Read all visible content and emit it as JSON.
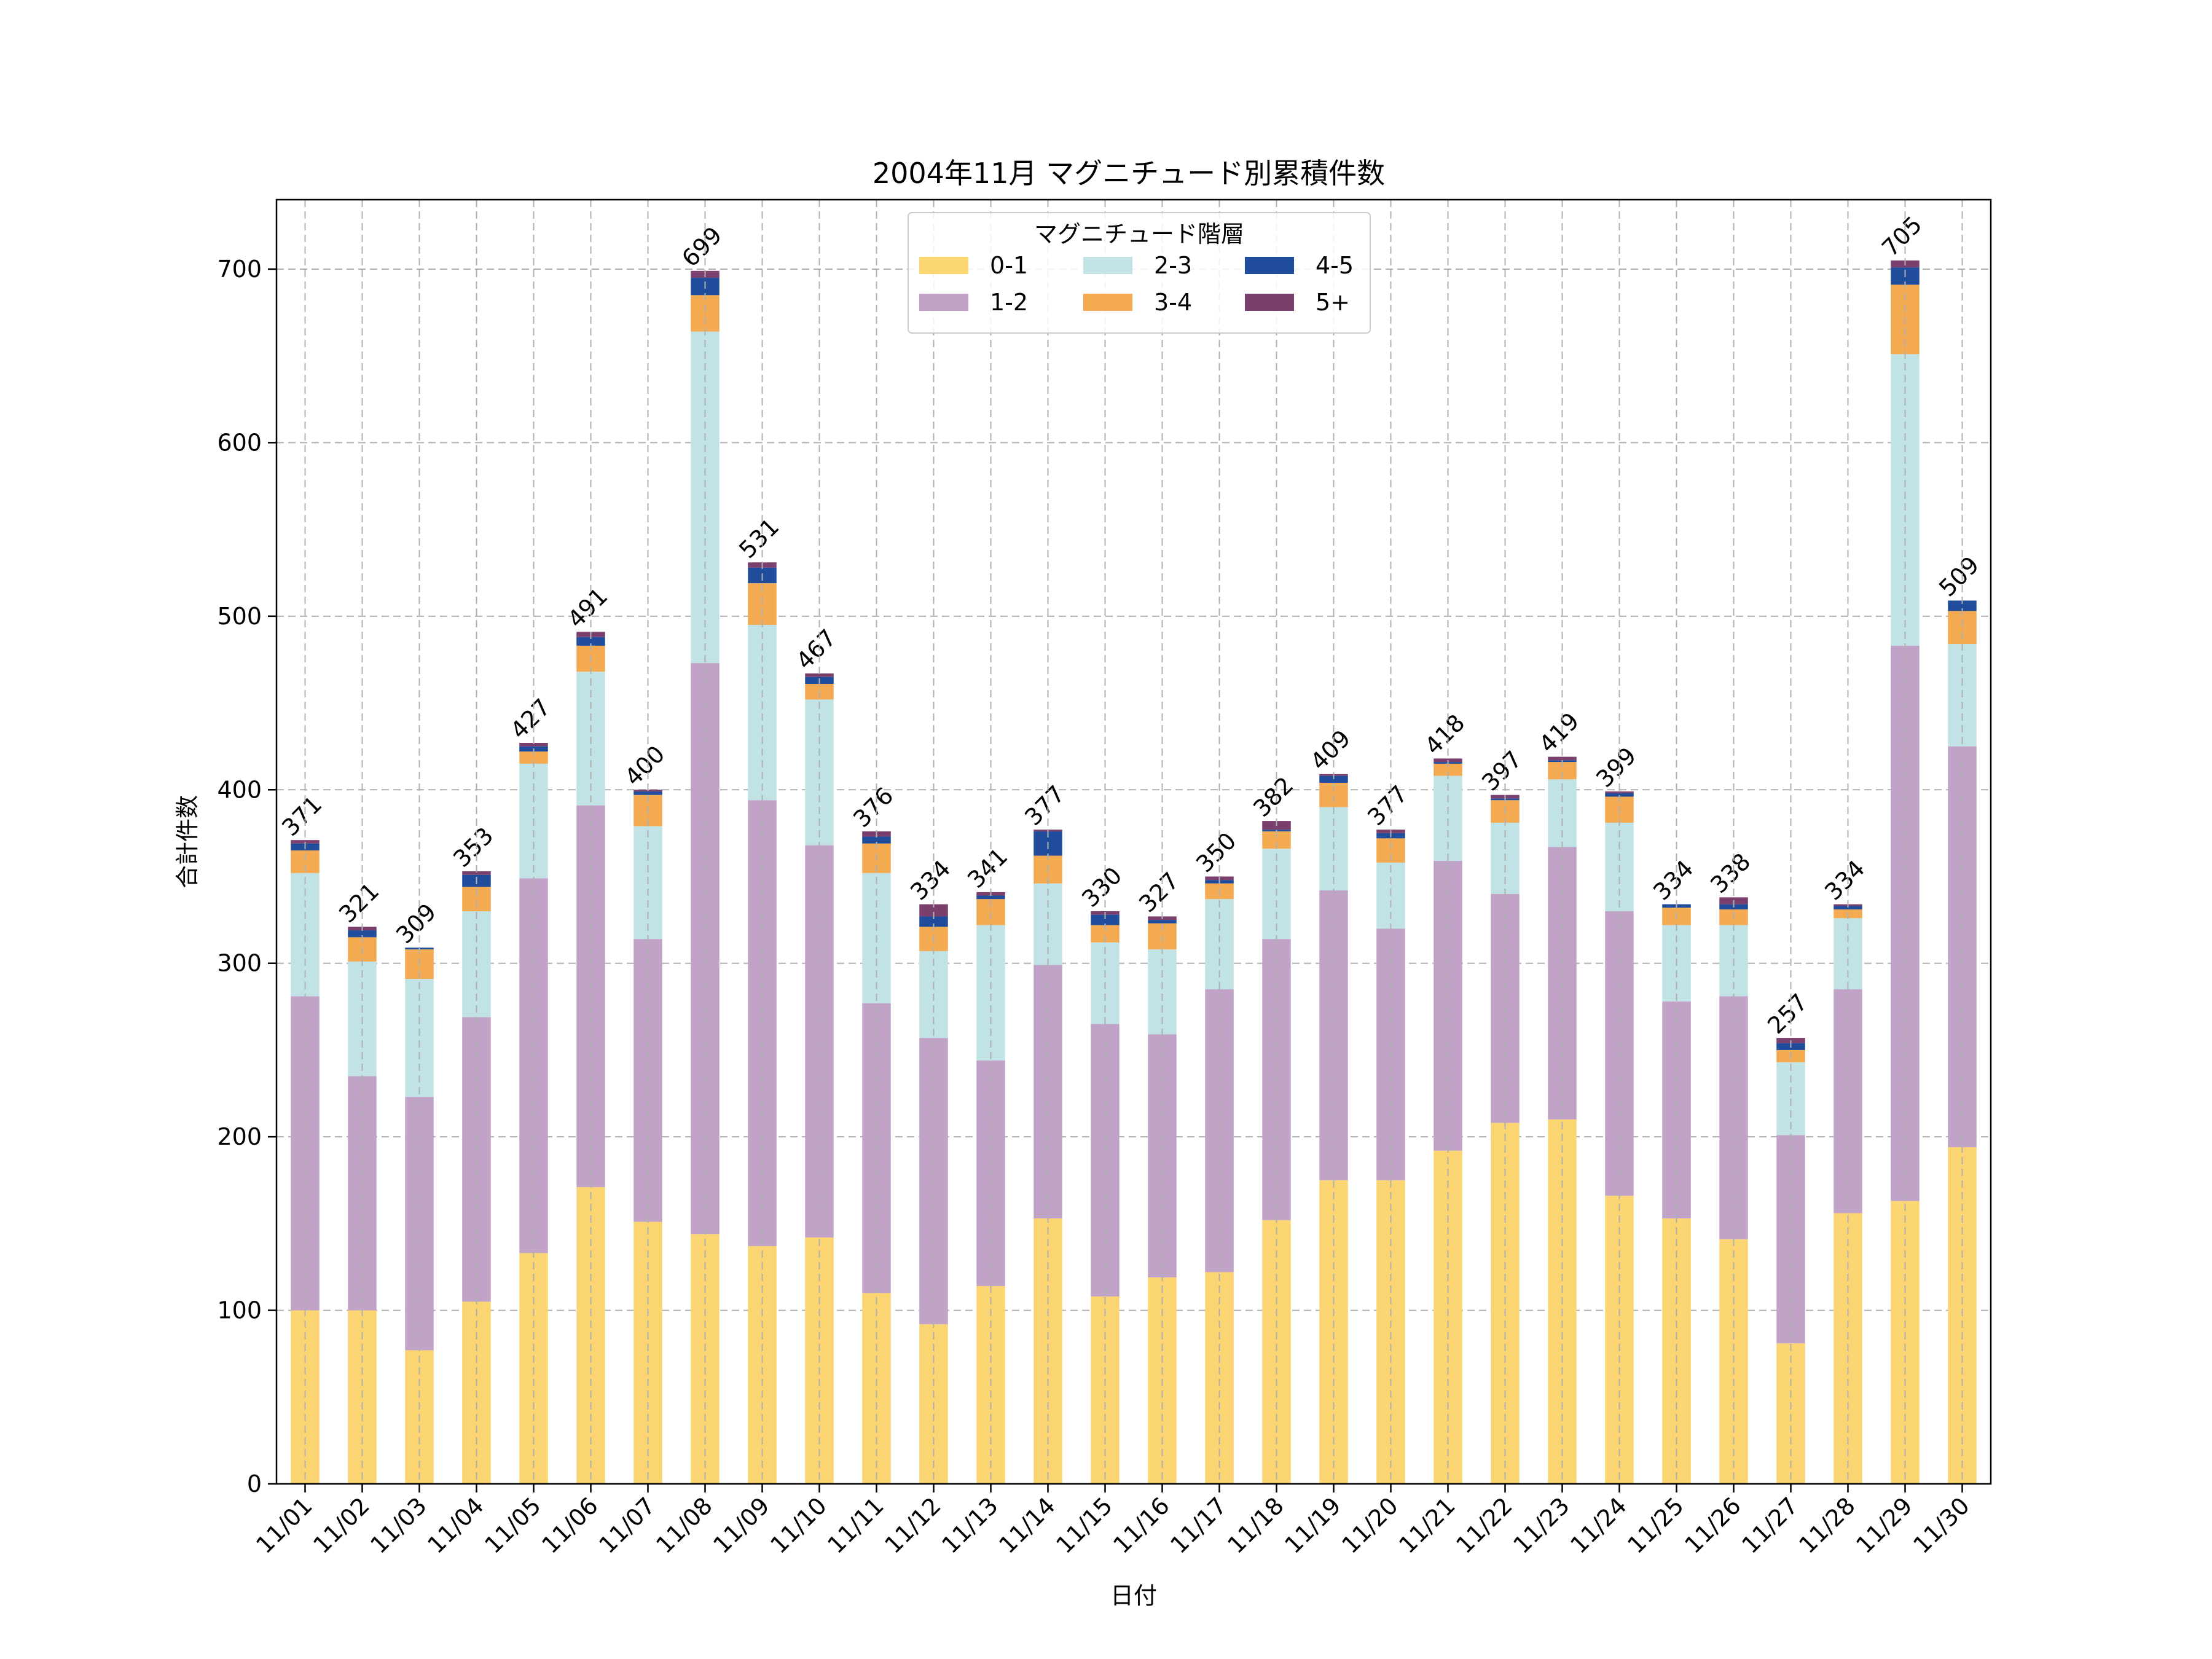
{
  "chart_data": {
    "type": "bar",
    "stacked": true,
    "title": "2004年11月 マグニチュード別累積件数",
    "xlabel": "日付",
    "ylabel": "合計件数",
    "ylim": [
      0,
      740
    ],
    "yticks": [
      0,
      100,
      200,
      300,
      400,
      500,
      600,
      700
    ],
    "grid": true,
    "legend": {
      "title": "マグニチュード階層",
      "position": "upper center"
    },
    "categories": [
      "11/01",
      "11/02",
      "11/03",
      "11/04",
      "11/05",
      "11/06",
      "11/07",
      "11/08",
      "11/09",
      "11/10",
      "11/11",
      "11/12",
      "11/13",
      "11/14",
      "11/15",
      "11/16",
      "11/17",
      "11/18",
      "11/19",
      "11/20",
      "11/21",
      "11/22",
      "11/23",
      "11/24",
      "11/25",
      "11/26",
      "11/27",
      "11/28",
      "11/29",
      "11/30"
    ],
    "series": [
      {
        "name": "0-1",
        "color": "#FBD571",
        "values": [
          100,
          100,
          77,
          105,
          133,
          171,
          151,
          144,
          137,
          142,
          110,
          92,
          114,
          153,
          108,
          119,
          122,
          152,
          175,
          175,
          192,
          208,
          210,
          166,
          153,
          141,
          81,
          156,
          163,
          194
        ]
      },
      {
        "name": "1-2",
        "color": "#C0A3C7",
        "values": [
          181,
          135,
          146,
          164,
          216,
          220,
          163,
          329,
          257,
          226,
          167,
          165,
          130,
          146,
          157,
          140,
          163,
          162,
          167,
          145,
          167,
          132,
          157,
          164,
          125,
          140,
          120,
          129,
          320,
          231
        ]
      },
      {
        "name": "2-3",
        "color": "#C2E3E6",
        "values": [
          71,
          66,
          68,
          61,
          66,
          77,
          65,
          191,
          101,
          84,
          75,
          50,
          78,
          47,
          47,
          49,
          52,
          52,
          48,
          38,
          49,
          41,
          39,
          51,
          44,
          41,
          42,
          41,
          168,
          59
        ]
      },
      {
        "name": "3-4",
        "color": "#F4AA50",
        "values": [
          13,
          14,
          17,
          14,
          7,
          15,
          18,
          21,
          24,
          9,
          17,
          14,
          15,
          16,
          10,
          15,
          9,
          10,
          14,
          14,
          7,
          13,
          10,
          15,
          10,
          9,
          7,
          5,
          40,
          19
        ]
      },
      {
        "name": "4-5",
        "color": "#1F4D9C",
        "values": [
          4,
          4,
          1,
          7,
          3,
          5,
          2,
          10,
          9,
          4,
          4,
          6,
          2,
          14,
          6,
          2,
          2,
          1,
          4,
          3,
          1,
          1,
          1,
          2,
          2,
          3,
          4,
          2,
          10,
          6
        ]
      },
      {
        "name": "5+",
        "color": "#7B3F6E",
        "values": [
          2,
          2,
          0,
          2,
          2,
          3,
          1,
          4,
          3,
          2,
          3,
          7,
          2,
          1,
          2,
          2,
          2,
          5,
          1,
          2,
          2,
          2,
          2,
          1,
          0,
          4,
          3,
          1,
          4,
          0
        ]
      }
    ],
    "totals": [
      371,
      321,
      309,
      353,
      427,
      491,
      400,
      699,
      531,
      467,
      376,
      334,
      341,
      377,
      330,
      327,
      350,
      382,
      409,
      377,
      418,
      397,
      419,
      399,
      334,
      338,
      257,
      334,
      705,
      509
    ]
  }
}
